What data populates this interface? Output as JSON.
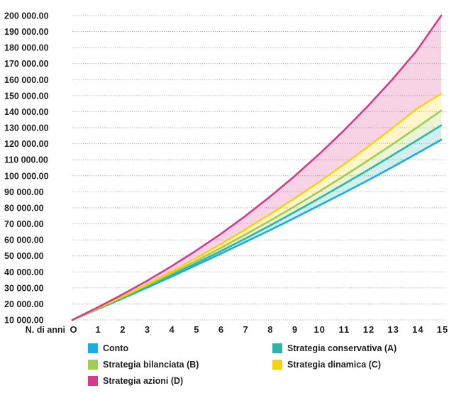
{
  "chart_data": {
    "type": "area",
    "title": "",
    "xlabel": "N. di anni",
    "ylabel": "",
    "x_tick_labels": [
      "O",
      "1",
      "2",
      "3",
      "4",
      "5",
      "6",
      "7",
      "8",
      "9",
      "10",
      "11",
      "12",
      "13",
      "14",
      "15"
    ],
    "x": [
      0,
      1,
      2,
      3,
      4,
      5,
      6,
      7,
      8,
      9,
      10,
      11,
      12,
      13,
      14,
      15
    ],
    "xlim": [
      0,
      15
    ],
    "ylim": [
      10000,
      200000
    ],
    "y_ticks": [
      10000,
      20000,
      30000,
      40000,
      50000,
      60000,
      70000,
      80000,
      90000,
      100000,
      110000,
      120000,
      130000,
      140000,
      150000,
      160000,
      170000,
      180000,
      190000,
      200000
    ],
    "y_tick_labels": [
      "10 000.00",
      "20 000.00",
      "30 000.00",
      "40 000.00",
      "50 000.00",
      "60 000.00",
      "70 000.00",
      "80 000.00",
      "90 000.00",
      "100 000.00",
      "110 000.00",
      "120 000.00",
      "130 000.00",
      "140 000.00",
      "150 000.00",
      "160 000.00",
      "170 000.00",
      "180 000.00",
      "190 000.00",
      "200 000.00"
    ],
    "grid": "horizontal dotted",
    "legend_position": "bottom",
    "series": [
      {
        "name": "Conto",
        "color": "#1aace4",
        "values": [
          10000,
          16500,
          23100,
          29900,
          36800,
          43900,
          51100,
          58400,
          65800,
          73400,
          81200,
          89000,
          97000,
          105300,
          113800,
          122500
        ]
      },
      {
        "name": "Strategia conservativa (A)",
        "color": "#2db5a8",
        "values": [
          10000,
          16700,
          23500,
          30500,
          37700,
          45100,
          52700,
          60500,
          68600,
          77000,
          85600,
          94400,
          103400,
          112600,
          122000,
          131500
        ]
      },
      {
        "name": "Strategia bilanciata (B)",
        "color": "#9ecd4f",
        "values": [
          10000,
          16900,
          24000,
          31300,
          38800,
          46600,
          54700,
          63000,
          71600,
          80500,
          89800,
          99400,
          109300,
          119500,
          130000,
          140700
        ]
      },
      {
        "name": "Strategia dinamica (C)",
        "color": "#f9d20e",
        "values": [
          10000,
          17100,
          24400,
          32000,
          40000,
          48300,
          57000,
          66100,
          75600,
          85500,
          95800,
          106600,
          117900,
          129600,
          141800,
          151200
        ]
      },
      {
        "name": "Strategia azioni (D)",
        "color": "#d63a8c",
        "values": [
          10000,
          17600,
          25600,
          34100,
          43200,
          52900,
          63300,
          74500,
          86500,
          99300,
          113000,
          127600,
          143200,
          159900,
          178000,
          200000
        ]
      }
    ]
  }
}
